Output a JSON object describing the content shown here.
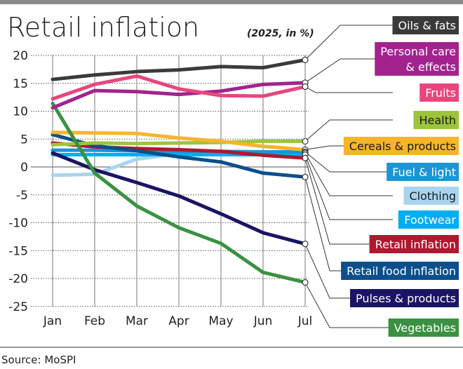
{
  "chart_data": {
    "type": "line",
    "title": "Retail inflation",
    "subtitle": "(2025, in %)",
    "source": "Source: MoSPI",
    "categories": [
      "Jan",
      "Feb",
      "Mar",
      "Apr",
      "May",
      "Jun",
      "Jul"
    ],
    "ylim": [
      -25,
      20
    ],
    "yticks": [
      20,
      15,
      10,
      5,
      0,
      -5,
      -10,
      -15,
      -20,
      -25
    ],
    "grid": true,
    "legend": "right, labels connected to July end points",
    "series": [
      {
        "name": "Oils & fats",
        "color": "#3a3a3a",
        "text_color": "#ffffff",
        "values": [
          15.7,
          16.5,
          17.1,
          17.4,
          18.0,
          17.8,
          19.2
        ]
      },
      {
        "name": "Personal care & effects",
        "color": "#a3238e",
        "text_color": "#ffffff",
        "values": [
          10.6,
          13.7,
          13.5,
          13.0,
          13.6,
          14.8,
          15.1
        ]
      },
      {
        "name": "Fruits",
        "color": "#e8467c",
        "text_color": "#ffffff",
        "values": [
          12.2,
          14.8,
          16.3,
          14.0,
          12.8,
          12.7,
          14.4
        ]
      },
      {
        "name": "Health",
        "color": "#9cc53b",
        "text_color": "#1a1a1a",
        "values": [
          4.0,
          4.3,
          4.2,
          4.3,
          4.4,
          4.6,
          4.6
        ]
      },
      {
        "name": "Cereals & products",
        "color": "#f6b52a",
        "text_color": "#1a1a1a",
        "values": [
          6.2,
          6.1,
          6.0,
          5.2,
          4.6,
          3.7,
          3.1
        ]
      },
      {
        "name": "Fuel & light",
        "color": "#1b95d6",
        "text_color": "#ffffff",
        "values": [
          3.0,
          3.0,
          2.9,
          2.8,
          2.8,
          2.7,
          2.7
        ]
      },
      {
        "name": "Clothing",
        "color": "#a9d4f0",
        "text_color": "#1a1a1a",
        "values": [
          -1.5,
          -1.3,
          1.4,
          2.4,
          2.5,
          2.5,
          2.5
        ]
      },
      {
        "name": "Footwear",
        "color": "#00aeef",
        "text_color": "#ffffff",
        "values": [
          2.2,
          2.2,
          2.2,
          2.2,
          2.2,
          2.2,
          2.2
        ]
      },
      {
        "name": "Retail inflation",
        "color": "#b0182e",
        "text_color": "#ffffff",
        "values": [
          4.3,
          3.6,
          3.3,
          3.1,
          2.8,
          2.1,
          1.6
        ]
      },
      {
        "name": "Retail food inflation",
        "color": "#0b4f8c",
        "text_color": "#ffffff",
        "values": [
          5.8,
          3.8,
          2.9,
          1.8,
          0.9,
          -1.1,
          -1.8
        ]
      },
      {
        "name": "Pulses & products",
        "color": "#1b1464",
        "text_color": "#ffffff",
        "values": [
          2.5,
          -0.5,
          -2.8,
          -5.2,
          -8.4,
          -11.8,
          -13.8
        ]
      },
      {
        "name": "Vegetables",
        "color": "#3a9142",
        "text_color": "#ffffff",
        "values": [
          11.4,
          -1.1,
          -7.0,
          -10.9,
          -13.7,
          -18.9,
          -20.7
        ]
      }
    ]
  }
}
